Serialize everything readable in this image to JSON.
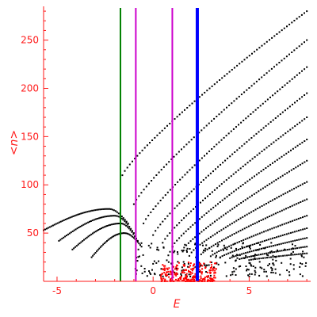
{
  "chart_data": {
    "type": "scatter",
    "title": "",
    "xlabel": "E",
    "ylabel": "<n>",
    "xlim": [
      -5.7,
      8.2
    ],
    "ylim": [
      0,
      285
    ],
    "xticks": [
      -5,
      0,
      5
    ],
    "yticks": [
      50,
      100,
      150,
      200,
      250
    ],
    "grid": false,
    "legend": "none",
    "axis_color": "#ff1a1a",
    "vertical_lines": [
      {
        "x": -1.7,
        "color": "#008000",
        "weight": "thin"
      },
      {
        "x": -0.9,
        "color": "#cc00cc",
        "weight": "thin"
      },
      {
        "x": 1.0,
        "color": "#cc00cc",
        "weight": "thin"
      },
      {
        "x": 2.3,
        "color": "#0000ff",
        "weight": "thick"
      }
    ],
    "series": [
      {
        "color": "#000000",
        "families": [
          {
            "start": [
              -1.6,
              110
            ],
            "end": [
              8.0,
              280
            ],
            "n": 75
          },
          {
            "start": [
              -1.0,
              80
            ],
            "end": [
              8.0,
              250
            ],
            "n": 70
          },
          {
            "start": [
              -0.5,
              60
            ],
            "end": [
              8.0,
              222
            ],
            "n": 68
          },
          {
            "start": [
              0.0,
              48
            ],
            "end": [
              8.0,
              195
            ],
            "n": 65
          },
          {
            "start": [
              0.5,
              40
            ],
            "end": [
              8.0,
              170
            ],
            "n": 62
          },
          {
            "start": [
              1.0,
              36
            ],
            "end": [
              8.0,
              147
            ],
            "n": 60
          },
          {
            "start": [
              1.5,
              32
            ],
            "end": [
              8.0,
              125
            ],
            "n": 58
          },
          {
            "start": [
              2.0,
              30
            ],
            "end": [
              8.0,
              103
            ],
            "n": 55
          },
          {
            "start": [
              2.5,
              28
            ],
            "end": [
              8.0,
              85
            ],
            "n": 52
          },
          {
            "start": [
              3.0,
              26
            ],
            "end": [
              8.0,
              68
            ],
            "n": 48
          },
          {
            "start": [
              3.5,
              25
            ],
            "end": [
              8.0,
              55
            ],
            "n": 44
          },
          {
            "start": [
              4.0,
              24
            ],
            "end": [
              8.0,
              45
            ],
            "n": 40
          },
          {
            "start": [
              4.5,
              23
            ],
            "end": [
              8.0,
              36
            ],
            "n": 36
          },
          {
            "start": [
              5.0,
              22
            ],
            "end": [
              8.0,
              29
            ],
            "n": 30
          }
        ],
        "arcs": [
          {
            "from": [
              -5.7,
              53
            ],
            "peak": [
              -2.3,
              75
            ],
            "to": [
              -1.3,
              60
            ],
            "n": 55
          },
          {
            "from": [
              -4.9,
              42
            ],
            "peak": [
              -2.0,
              68
            ],
            "to": [
              -1.0,
              50
            ],
            "n": 50
          },
          {
            "from": [
              -4.2,
              33
            ],
            "peak": [
              -1.7,
              60
            ],
            "to": [
              -0.8,
              42
            ],
            "n": 46
          },
          {
            "from": [
              -3.2,
              25
            ],
            "peak": [
              -1.5,
              50
            ],
            "to": [
              -0.6,
              36
            ],
            "n": 40
          }
        ],
        "scatter_region": {
          "x": [
            -1.0,
            8.0
          ],
          "y": [
            5,
            40
          ],
          "n": 230
        }
      },
      {
        "color": "#ff0000",
        "cluster": {
          "x": [
            0.4,
            3.3
          ],
          "y": [
            0,
            20
          ],
          "n": 260
        }
      }
    ]
  }
}
